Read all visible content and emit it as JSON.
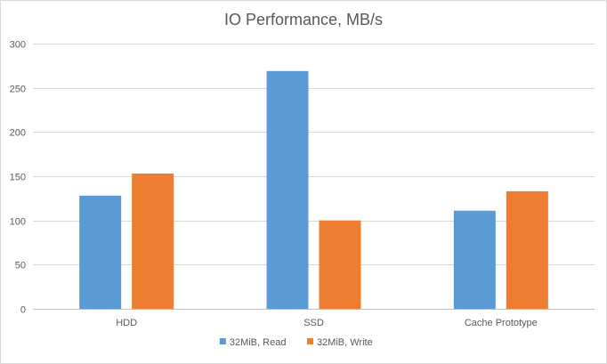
{
  "chart_data": {
    "type": "bar",
    "title": "IO Performance, MB/s",
    "categories": [
      "HDD",
      "SSD",
      "Cache Prototype"
    ],
    "series": [
      {
        "name": "32MiB, Read",
        "values": [
          128,
          269,
          111
        ],
        "color": "#5b9bd5"
      },
      {
        "name": "32MiB, Write",
        "values": [
          153,
          100,
          133
        ],
        "color": "#ed7d31"
      }
    ],
    "ylim": [
      0,
      300
    ],
    "yticks": [
      0,
      50,
      100,
      150,
      200,
      250,
      300
    ],
    "grid": true,
    "legend": "bottom"
  }
}
